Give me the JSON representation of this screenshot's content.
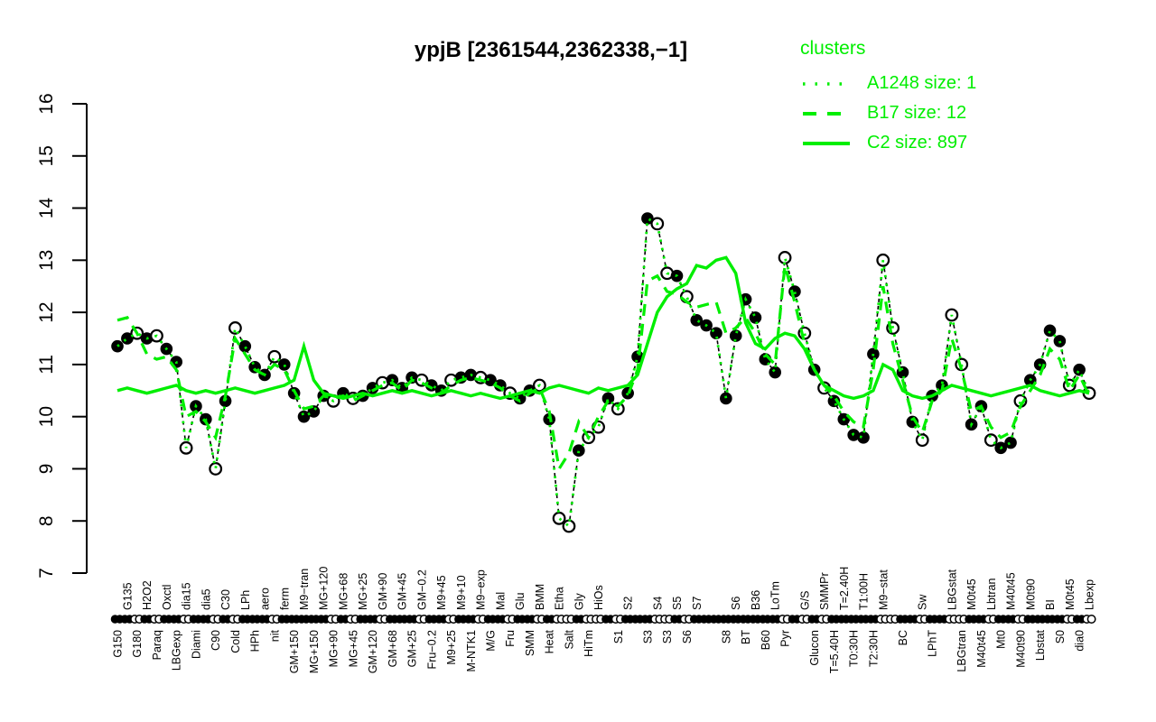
{
  "title": "ypjB [2361544,2362338,−1]",
  "legend": {
    "header": "clusters",
    "items": [
      {
        "label": "A1248 size: 1",
        "style": "dotted"
      },
      {
        "label": "B17 size: 12",
        "style": "dashed"
      },
      {
        "label": "C2 size: 897",
        "style": "solid"
      }
    ]
  },
  "colors": {
    "cluster_green": "#00EE00",
    "point_black": "#000000",
    "open_white": "#FFFFFF",
    "axis_black": "#000000"
  },
  "chart_data": {
    "type": "line+scatter",
    "title": "ypjB [2361544,2362338,−1]",
    "xlabel": "",
    "ylabel": "",
    "ylim": [
      7,
      16
    ],
    "yticks": [
      7,
      8,
      9,
      10,
      11,
      12,
      13,
      14,
      15,
      16
    ],
    "grid": false,
    "legend_position": "top-right",
    "categories": [
      "G150",
      "G135",
      "G180",
      "H2O2",
      "Paraq",
      "Oxctl",
      "LBGexp",
      "dia15",
      "Diami",
      "dia5",
      "C90",
      "C30",
      "Cold",
      "LPh",
      "HPh",
      "aero",
      "nit",
      "ferm",
      "GM+150",
      "M9−tran",
      "MG+150",
      "MG+120",
      "MG+90",
      "MG+68",
      "MG+45",
      "MG+25",
      "GM+120",
      "GM+90",
      "GM+68",
      "GM+45",
      "GM+25",
      "GM−0.2",
      "Fru−0.2",
      "M9+45",
      "M9+25",
      "M9+10",
      "M-NTK1",
      "M9−exp",
      "M/G",
      "Mal",
      "Fru",
      "Glu",
      "SMM",
      "BMM",
      "Heat",
      "Etha",
      "Salt",
      "Gly",
      "HiTm",
      "HiOs",
      "",
      "S1",
      "S2",
      "",
      "S3",
      "S4",
      "S3",
      "S5",
      "S6",
      "S7",
      "",
      "",
      "S8",
      "S6",
      "BT",
      "B36",
      "B60",
      "LoTm",
      "Pyr",
      "",
      "G/S",
      "Glucon",
      "SMMPr",
      "T=5.40H",
      "T=2.40H",
      "T0:30H",
      "T1:00H",
      "T2:30H",
      "M9−stat",
      "",
      "BC",
      "",
      "Sw",
      "LPhT",
      "",
      "LBGstat",
      "LBGtran",
      "M0t45",
      "M40t45",
      "Lbtran",
      "Mt0",
      "M40t45",
      "M40t90",
      "M0t90",
      "Lbstat",
      "BI",
      "S0",
      "M0t45",
      "dia0",
      "Lbexp"
    ],
    "label_rows": [
      "b",
      "t",
      "b",
      "t",
      "b",
      "t",
      "b",
      "t",
      "b",
      "t",
      "b",
      "t",
      "b",
      "t",
      "b",
      "t",
      "b",
      "t",
      "b",
      "t",
      "b",
      "t",
      "b",
      "t",
      "b",
      "t",
      "b",
      "t",
      "b",
      "t",
      "b",
      "t",
      "b",
      "t",
      "b",
      "t",
      "b",
      "t",
      "b",
      "t",
      "b",
      "t",
      "b",
      "t",
      "b",
      "t",
      "b",
      "t",
      "b",
      "t",
      "b",
      "b",
      "t",
      "b",
      "b",
      "t",
      "b",
      "t",
      "b",
      "t",
      "b",
      "t",
      "b",
      "t",
      "b",
      "t",
      "b",
      "t",
      "b",
      "t",
      "t",
      "b",
      "t",
      "b",
      "t",
      "b",
      "t",
      "b",
      "t",
      "b",
      "b",
      "t",
      "t",
      "b",
      "t",
      "t",
      "b",
      "t",
      "b",
      "t",
      "b",
      "t",
      "b",
      "t",
      "b",
      "t",
      "b",
      "t",
      "b",
      "t"
    ],
    "point_markers": [
      "f",
      "f",
      "o",
      "f",
      "o",
      "f",
      "f",
      "o",
      "f",
      "f",
      "o",
      "f",
      "o",
      "f",
      "f",
      "f",
      "o",
      "f",
      "f",
      "f",
      "f",
      "f",
      "o",
      "f",
      "o",
      "f",
      "f",
      "o",
      "f",
      "f",
      "f",
      "o",
      "f",
      "f",
      "o",
      "f",
      "f",
      "o",
      "f",
      "f",
      "o",
      "f",
      "f",
      "o",
      "f",
      "o",
      "o",
      "f",
      "o",
      "o",
      "f",
      "o",
      "f",
      "f",
      "f",
      "o",
      "o",
      "f",
      "o",
      "f",
      "f",
      "f",
      "f",
      "f",
      "f",
      "f",
      "f",
      "f",
      "o",
      "f",
      "o",
      "f",
      "o",
      "f",
      "f",
      "f",
      "f",
      "f",
      "o",
      "o",
      "f",
      "f",
      "o",
      "f",
      "f",
      "o",
      "o",
      "f",
      "f",
      "o",
      "f",
      "f",
      "o",
      "f",
      "f",
      "f",
      "f",
      "o",
      "f",
      "o"
    ],
    "series": [
      {
        "name": "ypjB",
        "role": "gene-data-points",
        "color": "#000000",
        "line": "dashed-thin",
        "values": [
          11.35,
          11.5,
          11.6,
          11.5,
          11.55,
          11.3,
          11.05,
          9.4,
          10.2,
          9.95,
          9.0,
          10.3,
          11.7,
          11.35,
          10.95,
          10.8,
          11.15,
          11.0,
          10.45,
          10.0,
          10.1,
          10.4,
          10.3,
          10.45,
          10.35,
          10.4,
          10.55,
          10.65,
          10.7,
          10.55,
          10.75,
          10.7,
          10.6,
          10.5,
          10.7,
          10.75,
          10.8,
          10.75,
          10.7,
          10.6,
          10.45,
          10.35,
          10.5,
          10.6,
          9.95,
          8.05,
          7.9,
          9.35,
          9.6,
          9.8,
          10.35,
          10.15,
          10.45,
          11.15,
          13.8,
          13.7,
          12.75,
          12.7,
          12.3,
          11.85,
          11.75,
          11.6,
          10.35,
          11.55,
          12.25,
          11.9,
          11.1,
          10.85,
          13.05,
          12.4,
          11.6,
          10.9,
          10.55,
          10.3,
          9.95,
          9.65,
          9.6,
          11.2,
          13.0,
          11.7,
          10.85,
          9.9,
          9.55,
          10.4,
          10.6,
          11.95,
          11.0,
          9.85,
          10.2,
          9.55,
          9.4,
          9.5,
          10.3,
          10.7,
          11.0,
          11.65,
          11.45,
          10.6,
          10.9,
          10.45
        ]
      },
      {
        "name": "A1248 size: 1",
        "role": "cluster-mean",
        "color": "#00EE00",
        "line": "dotted",
        "values": [
          11.35,
          11.5,
          11.6,
          11.5,
          11.55,
          11.3,
          11.05,
          9.4,
          10.2,
          9.95,
          9.0,
          10.3,
          11.7,
          11.35,
          10.95,
          10.8,
          11.15,
          11.0,
          10.45,
          10.0,
          10.1,
          10.4,
          10.3,
          10.45,
          10.35,
          10.4,
          10.55,
          10.65,
          10.7,
          10.55,
          10.75,
          10.7,
          10.6,
          10.5,
          10.7,
          10.75,
          10.8,
          10.75,
          10.7,
          10.6,
          10.45,
          10.35,
          10.5,
          10.6,
          9.95,
          8.05,
          7.9,
          9.35,
          9.6,
          9.8,
          10.35,
          10.15,
          10.45,
          11.15,
          13.8,
          13.7,
          12.75,
          12.7,
          12.3,
          11.85,
          11.75,
          11.6,
          10.35,
          11.55,
          12.25,
          11.9,
          11.1,
          10.85,
          13.05,
          12.4,
          11.6,
          10.9,
          10.55,
          10.3,
          9.95,
          9.65,
          9.6,
          11.2,
          13.0,
          11.7,
          10.85,
          9.9,
          9.55,
          10.4,
          10.6,
          11.95,
          11.0,
          9.85,
          10.2,
          9.55,
          9.4,
          9.5,
          10.3,
          10.7,
          11.0,
          11.65,
          11.45,
          10.6,
          10.9,
          10.45
        ]
      },
      {
        "name": "B17 size: 12",
        "role": "cluster-mean",
        "color": "#00EE00",
        "line": "dashed",
        "values": [
          11.85,
          11.9,
          11.6,
          11.2,
          11.1,
          11.15,
          10.9,
          10.0,
          10.1,
          9.9,
          9.6,
          10.4,
          11.5,
          11.2,
          10.9,
          10.8,
          11.0,
          10.9,
          10.5,
          10.15,
          10.2,
          10.4,
          10.35,
          10.4,
          10.3,
          10.4,
          10.5,
          10.6,
          10.65,
          10.5,
          10.7,
          10.65,
          10.55,
          10.45,
          10.6,
          10.7,
          10.75,
          10.7,
          10.65,
          10.55,
          10.4,
          10.3,
          10.45,
          10.55,
          10.1,
          9.0,
          9.3,
          9.9,
          9.6,
          10.0,
          10.3,
          10.2,
          10.4,
          10.9,
          12.6,
          12.7,
          12.4,
          12.35,
          12.2,
          12.1,
          12.15,
          12.2,
          11.6,
          11.7,
          11.9,
          11.6,
          11.2,
          11.0,
          12.9,
          12.2,
          11.4,
          10.9,
          10.6,
          10.4,
          10.1,
          9.9,
          9.8,
          10.9,
          12.5,
          11.4,
          10.7,
          10.0,
          9.7,
          10.3,
          10.5,
          11.5,
          10.9,
          10.1,
          10.2,
          9.8,
          9.6,
          9.7,
          10.2,
          10.5,
          10.8,
          11.3,
          11.1,
          10.5,
          10.8,
          10.4
        ]
      },
      {
        "name": "C2 size: 897",
        "role": "cluster-mean",
        "color": "#00EE00",
        "line": "solid",
        "values": [
          10.5,
          10.55,
          10.5,
          10.45,
          10.5,
          10.55,
          10.6,
          10.5,
          10.45,
          10.5,
          10.45,
          10.5,
          10.55,
          10.5,
          10.45,
          10.5,
          10.55,
          10.6,
          10.7,
          11.35,
          10.7,
          10.45,
          10.4,
          10.35,
          10.4,
          10.45,
          10.4,
          10.45,
          10.5,
          10.45,
          10.5,
          10.45,
          10.4,
          10.45,
          10.5,
          10.45,
          10.4,
          10.45,
          10.4,
          10.35,
          10.4,
          10.45,
          10.5,
          10.45,
          10.55,
          10.6,
          10.55,
          10.5,
          10.45,
          10.55,
          10.5,
          10.55,
          10.6,
          10.8,
          11.4,
          12.0,
          12.3,
          12.45,
          12.55,
          12.9,
          12.85,
          13.0,
          13.05,
          12.75,
          11.8,
          11.4,
          11.3,
          11.5,
          11.6,
          11.55,
          11.3,
          10.9,
          10.6,
          10.5,
          10.4,
          10.35,
          10.4,
          10.5,
          11.0,
          10.9,
          10.5,
          10.4,
          10.35,
          10.4,
          10.5,
          10.6,
          10.55,
          10.5,
          10.45,
          10.4,
          10.45,
          10.5,
          10.55,
          10.6,
          10.5,
          10.45,
          10.4,
          10.45,
          10.5,
          10.45
        ]
      }
    ]
  }
}
